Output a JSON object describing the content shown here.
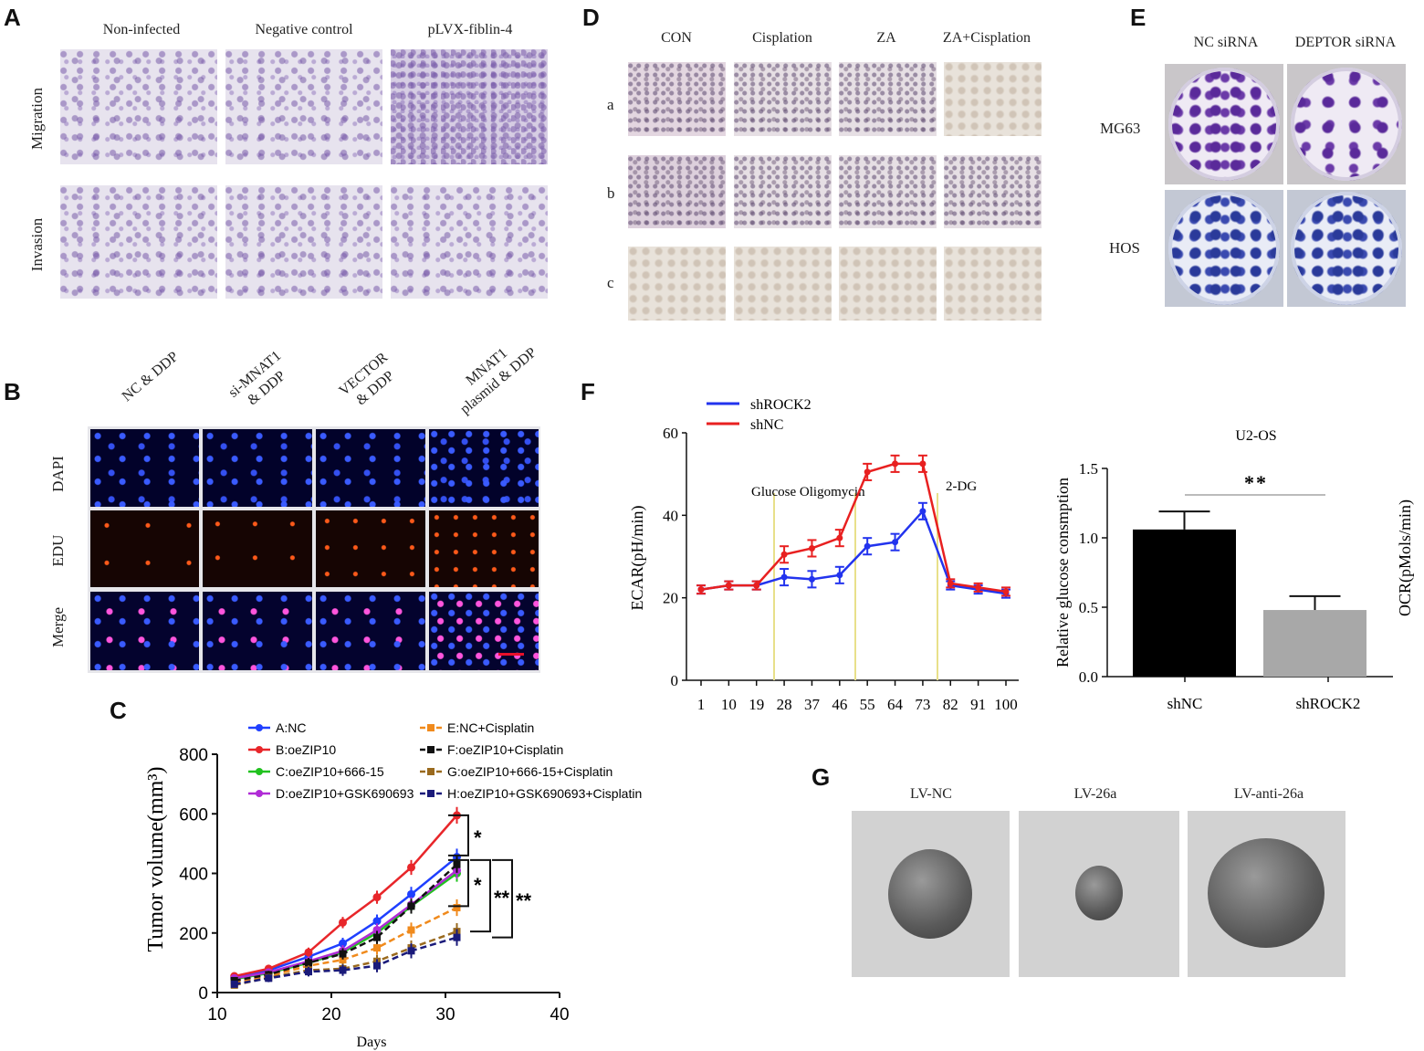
{
  "panels": {
    "A": {
      "label": "A",
      "columns": [
        "Non-infected",
        "Negative control",
        "pLVX-fiblin-4"
      ],
      "rows": [
        "Migration",
        "Invasion"
      ]
    },
    "B": {
      "label": "B",
      "columns": [
        "NC & DDP",
        "si-MNAT1\n& DDP",
        "VECTOR\n& DDP",
        "MNAT1\nplasmid & DDP"
      ],
      "rows": [
        "DAPI",
        "EDU",
        "Merge"
      ]
    },
    "C": {
      "label": "C"
    },
    "D": {
      "label": "D",
      "columns": [
        "CON",
        "Cisplation",
        "ZA",
        "ZA+Cisplation"
      ],
      "rows": [
        "a",
        "b",
        "c"
      ]
    },
    "E": {
      "label": "E",
      "columns": [
        "NC siRNA",
        "DEPTOR siRNA"
      ],
      "rows": [
        "MG63",
        "HOS"
      ]
    },
    "F": {
      "label": "F"
    },
    "G": {
      "label": "G",
      "columns": [
        "LV-NC",
        "LV-26a",
        "LV-anti-26a"
      ]
    }
  },
  "chart_data": [
    {
      "id": "C",
      "type": "line",
      "xlabel": "Days",
      "ylabel": "Tumor volume(mm³)",
      "xlim": [
        10,
        40
      ],
      "ylim": [
        0,
        800
      ],
      "xticks": [
        10,
        20,
        30,
        40
      ],
      "yticks": [
        0,
        200,
        400,
        600,
        800
      ],
      "x": [
        11.5,
        14.5,
        18,
        21,
        24,
        27,
        31
      ],
      "series": [
        {
          "name": "A:NC",
          "color": "#1f3fff",
          "dash": false,
          "values": [
            50,
            75,
            120,
            165,
            240,
            330,
            455
          ]
        },
        {
          "name": "B:oeZIP10",
          "color": "#e8262a",
          "dash": false,
          "values": [
            55,
            80,
            135,
            235,
            320,
            420,
            595
          ]
        },
        {
          "name": "C:oeZIP10+666-15",
          "color": "#21c21f",
          "dash": false,
          "values": [
            45,
            65,
            100,
            135,
            200,
            290,
            400
          ]
        },
        {
          "name": "D:oeZIP10+GSK690693",
          "color": "#b02bd6",
          "dash": false,
          "values": [
            48,
            68,
            105,
            140,
            210,
            295,
            410
          ]
        },
        {
          "name": "E:NC+Cisplatin",
          "color": "#f08a1c",
          "dash": true,
          "values": [
            35,
            55,
            90,
            110,
            150,
            210,
            285
          ]
        },
        {
          "name": "F:oeZIP10+Cisplatin",
          "color": "#111111",
          "dash": true,
          "values": [
            40,
            60,
            100,
            130,
            185,
            290,
            430
          ]
        },
        {
          "name": "G:oeZIP10+666-15+Cisplatin",
          "color": "#9a6a1e",
          "dash": true,
          "values": [
            25,
            50,
            75,
            80,
            105,
            150,
            205
          ]
        },
        {
          "name": "H:oeZIP10+GSK690693+Cisplatin",
          "color": "#1a1a7a",
          "dash": true,
          "values": [
            28,
            48,
            70,
            75,
            90,
            140,
            185
          ]
        }
      ],
      "annotations": [
        "*",
        "*",
        "**",
        "**"
      ]
    },
    {
      "id": "F-left",
      "type": "line",
      "ylabel": "ECAR(pH/min)",
      "ylim": [
        0,
        60
      ],
      "yticks": [
        0,
        20,
        40,
        60
      ],
      "categories": [
        "1",
        "10",
        "19",
        "28",
        "37",
        "46",
        "55",
        "64",
        "73",
        "82",
        "91",
        "100"
      ],
      "series": [
        {
          "name": "shROCK2",
          "color": "#2233ee",
          "values": [
            22,
            23,
            23,
            25,
            24.5,
            25.5,
            32.5,
            33.5,
            41,
            23,
            22,
            21
          ]
        },
        {
          "name": "shNC",
          "color": "#e82020",
          "values": [
            22,
            23,
            23,
            30.5,
            32,
            34.5,
            50.5,
            52.5,
            52.5,
            23.5,
            22.5,
            21.5
          ]
        }
      ],
      "annotations": [
        "Glucose Oligomycin",
        "2-DG"
      ]
    },
    {
      "id": "F-right",
      "type": "bar",
      "title": "U2-OS",
      "ylabel": "Relative glucose consmption",
      "ylabel2": "OCR(pMols/min)",
      "ylim": [
        0,
        1.5
      ],
      "yticks": [
        "0.0",
        "0.5",
        "1.0",
        "1.5"
      ],
      "categories": [
        "shNC",
        "shROCK2"
      ],
      "values": [
        1.06,
        0.48
      ],
      "errors": [
        0.13,
        0.1
      ],
      "colors": [
        "#000000",
        "#a8a8a8"
      ],
      "significance": "**"
    }
  ]
}
